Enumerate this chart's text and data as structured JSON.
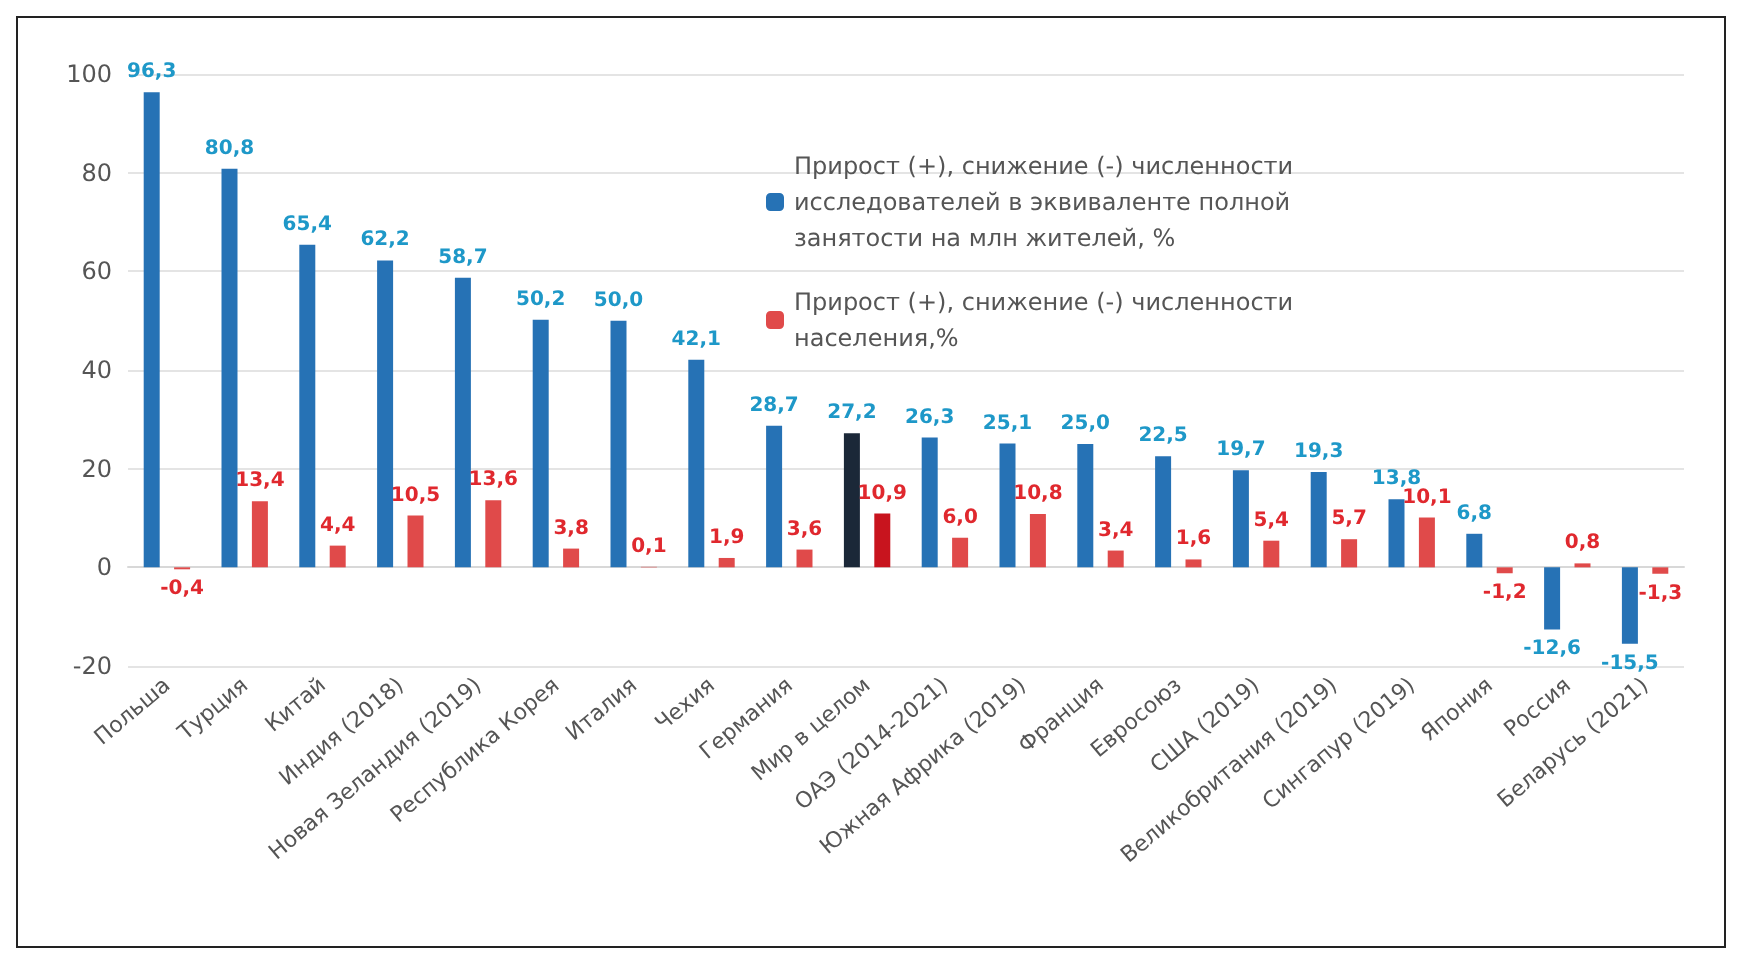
{
  "chart_data": {
    "type": "bar",
    "categories": [
      "Польша",
      "Турция",
      "Китай",
      "Индия (2018)",
      "Новая Зеландия (2019)",
      "Республика Корея",
      "Италия",
      "Чехия",
      "Германия",
      "Мир в целом",
      "ОАЭ (2014-2021)",
      "Южная Африка (2019)",
      "Франция",
      "Евросоюз",
      "США (2019)",
      "Великобритания (2019)",
      "Сингапур (2019)",
      "Япония",
      "Россия",
      "Беларусь (2021)"
    ],
    "series": [
      {
        "name": "Прирост (+), снижение (-) численности исследователей в эквиваленте полной занятости на млн жителей, %",
        "color": "#2672b5",
        "colors": [
          "#2672b5",
          "#2672b5",
          "#2672b5",
          "#2672b5",
          "#2672b5",
          "#2672b5",
          "#2672b5",
          "#2672b5",
          "#2672b5",
          "#1b2838",
          "#2672b5",
          "#2672b5",
          "#2672b5",
          "#2672b5",
          "#2672b5",
          "#2672b5",
          "#2672b5",
          "#2672b5",
          "#2672b5",
          "#2672b5"
        ],
        "values": [
          96.3,
          80.8,
          65.4,
          62.2,
          58.7,
          50.2,
          50.0,
          42.1,
          28.7,
          27.2,
          26.3,
          25.1,
          25.0,
          22.5,
          19.7,
          19.3,
          13.8,
          6.8,
          -12.6,
          -15.5
        ],
        "value_labels": [
          "96,3",
          "80,8",
          "65,4",
          "62,2",
          "58,7",
          "50,2",
          "50,0",
          "42,1",
          "28,7",
          "27,2",
          "26,3",
          "25,1",
          "25,0",
          "22,5",
          "19,7",
          "19,3",
          "13,8",
          "6,8",
          "-12,6",
          "-15,5"
        ]
      },
      {
        "name": "Прирост (+), снижение (-) численности населения,%",
        "color": "#e04a4a",
        "colors": [
          "#e04a4a",
          "#e04a4a",
          "#e04a4a",
          "#e04a4a",
          "#e04a4a",
          "#e04a4a",
          "#e04a4a",
          "#e04a4a",
          "#e04a4a",
          "#c8141e",
          "#e04a4a",
          "#e04a4a",
          "#e04a4a",
          "#e04a4a",
          "#e04a4a",
          "#e04a4a",
          "#e04a4a",
          "#e04a4a",
          "#e04a4a",
          "#e04a4a"
        ],
        "values": [
          -0.4,
          13.4,
          4.4,
          10.5,
          13.6,
          3.8,
          0.1,
          1.9,
          3.6,
          10.9,
          6.0,
          10.8,
          3.4,
          1.6,
          5.4,
          5.7,
          10.1,
          -1.2,
          0.8,
          -1.3
        ],
        "value_labels": [
          "-0,4",
          "13,4",
          "4,4",
          "10,5",
          "13,6",
          "3,8",
          "0,1",
          "1,9",
          "3,6",
          "10,9",
          "6,0",
          "10,8",
          "3,4",
          "1,6",
          "5,4",
          "5,7",
          "10,1",
          "-1,2",
          "0,8",
          "-1,3"
        ]
      }
    ],
    "ylim": [
      -20,
      100
    ],
    "yticks": [
      -20,
      0,
      20,
      40,
      60,
      80,
      100
    ],
    "grid": "y",
    "legend": "top right"
  }
}
